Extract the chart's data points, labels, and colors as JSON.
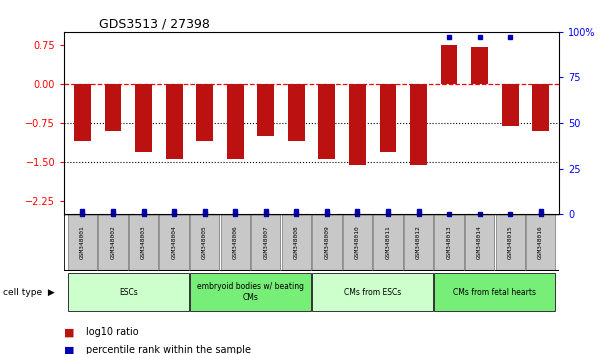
{
  "title": "GDS3513 / 27398",
  "samples": [
    "GSM348001",
    "GSM348002",
    "GSM348003",
    "GSM348004",
    "GSM348005",
    "GSM348006",
    "GSM348007",
    "GSM348008",
    "GSM348009",
    "GSM348010",
    "GSM348011",
    "GSM348012",
    "GSM348013",
    "GSM348014",
    "GSM348015",
    "GSM348016"
  ],
  "log10_ratio": [
    -1.1,
    -0.9,
    -1.3,
    -1.45,
    -1.1,
    -1.45,
    -1.0,
    -1.1,
    -1.45,
    -1.55,
    -1.3,
    -1.55,
    0.75,
    0.7,
    -0.8,
    -0.9
  ],
  "percentile_rank": [
    2,
    2,
    2,
    2,
    2,
    2,
    2,
    2,
    2,
    2,
    2,
    2,
    97,
    97,
    97,
    2
  ],
  "ylim_left": [
    -2.5,
    1.0
  ],
  "ylim_right": [
    0,
    100
  ],
  "yticks_left": [
    0.75,
    0.0,
    -0.75,
    -1.5,
    -2.25
  ],
  "yticks_right": [
    100,
    75,
    50,
    25,
    0
  ],
  "bar_color": "#BB1111",
  "dot_color": "#0000BB",
  "cell_groups": [
    {
      "label": "ESCs",
      "start": 0,
      "end": 3,
      "color": "#CCFFCC"
    },
    {
      "label": "embryoid bodies w/ beating\nCMs",
      "start": 4,
      "end": 7,
      "color": "#77EE77"
    },
    {
      "label": "CMs from ESCs",
      "start": 8,
      "end": 11,
      "color": "#CCFFCC"
    },
    {
      "label": "CMs from fetal hearts",
      "start": 12,
      "end": 15,
      "color": "#77EE77"
    }
  ],
  "legend": [
    {
      "color": "#BB1111",
      "label": "log10 ratio"
    },
    {
      "color": "#0000BB",
      "label": "percentile rank within the sample"
    }
  ],
  "sample_box_color": "#C8C8C8",
  "title_fontsize": 9,
  "tick_fontsize": 7
}
